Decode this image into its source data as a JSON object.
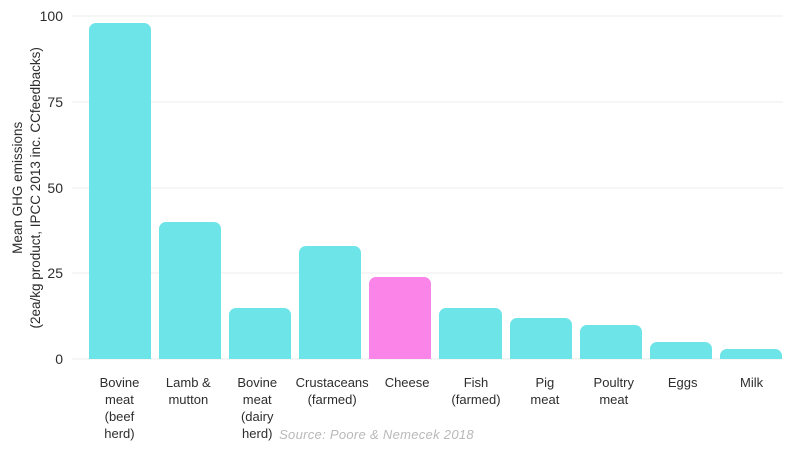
{
  "chart_data": {
    "type": "bar",
    "title": "",
    "ylabel_line1": "Mean GHG emissions",
    "ylabel_line2": "(2ea/kg product, IPCC 2013 inc. CCfeedbacks)",
    "xlabel": "",
    "source": "Source: Poore & Nemecek 2018",
    "ylim": [
      0,
      100
    ],
    "yticks": [
      0,
      25,
      50,
      75,
      100
    ],
    "grid": true,
    "legend": false,
    "highlight_index": 4,
    "colors": {
      "bar": "#6ce4e8",
      "highlight": "#fa84e8",
      "grid": "#ececec",
      "text": "#2d2d2d",
      "source_text": "#b9b9b9"
    },
    "categories": [
      "Bovine meat\n(beef herd)",
      "Lamb &\nmutton",
      "Bovine\nmeat\n(dairy herd)",
      "Crustaceans\n(farmed)",
      "Cheese",
      "Fish\n(farmed)",
      "Pig\nmeat",
      "Poultry\nmeat",
      "Eggs",
      "Milk"
    ],
    "values": [
      98,
      40,
      15,
      33,
      24,
      15,
      12,
      10,
      5,
      3
    ]
  }
}
